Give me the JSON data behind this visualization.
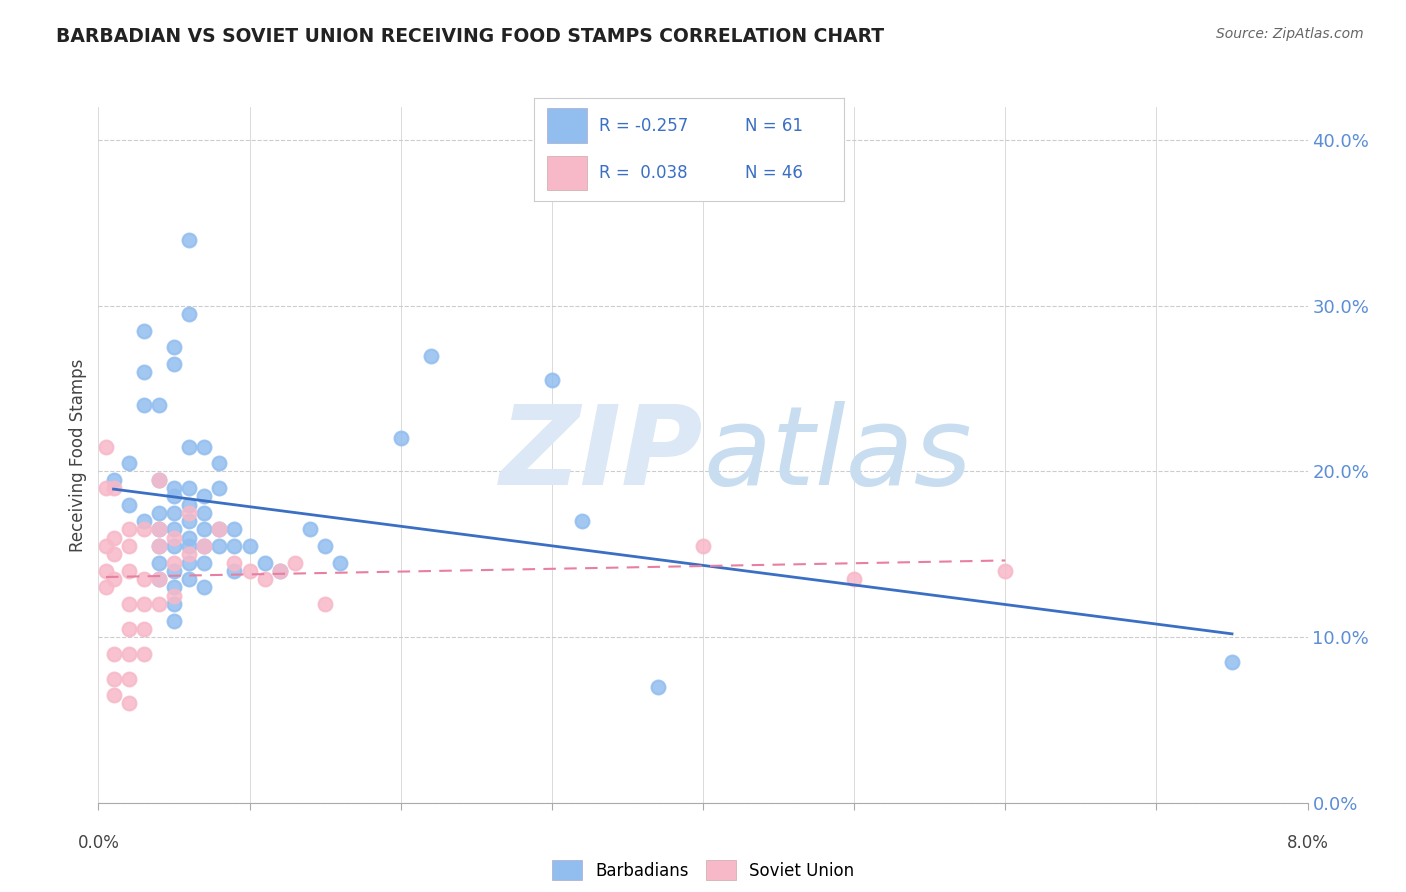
{
  "title": "BARBADIAN VS SOVIET UNION RECEIVING FOOD STAMPS CORRELATION CHART",
  "source": "Source: ZipAtlas.com",
  "ylabel": "Receiving Food Stamps",
  "ytick_vals": [
    0.0,
    0.1,
    0.2,
    0.3,
    0.4
  ],
  "ytick_labels": [
    "0.0%",
    "10.0%",
    "20.0%",
    "30.0%",
    "40.0%"
  ],
  "legend_barbadians": {
    "R": "-0.257",
    "N": "61"
  },
  "legend_soviet": {
    "R": "0.038",
    "N": "46"
  },
  "barbadian_color": "#92bdef",
  "soviet_color": "#f7b8c8",
  "barbadian_line_color": "#3a6fc4",
  "soviet_line_color": "#e87fa0",
  "soviet_line_dash": true,
  "background_color": "#ffffff",
  "grid_color": "#cccccc",
  "ytick_color": "#5b8ed6",
  "xlim": [
    0.0,
    0.08
  ],
  "ylim": [
    0.0,
    0.42
  ],
  "barbadian_points": [
    [
      0.001,
      0.195
    ],
    [
      0.002,
      0.205
    ],
    [
      0.002,
      0.18
    ],
    [
      0.003,
      0.285
    ],
    [
      0.003,
      0.26
    ],
    [
      0.003,
      0.24
    ],
    [
      0.003,
      0.17
    ],
    [
      0.004,
      0.24
    ],
    [
      0.004,
      0.195
    ],
    [
      0.004,
      0.175
    ],
    [
      0.004,
      0.165
    ],
    [
      0.004,
      0.155
    ],
    [
      0.004,
      0.145
    ],
    [
      0.004,
      0.135
    ],
    [
      0.005,
      0.275
    ],
    [
      0.005,
      0.265
    ],
    [
      0.005,
      0.19
    ],
    [
      0.005,
      0.185
    ],
    [
      0.005,
      0.175
    ],
    [
      0.005,
      0.165
    ],
    [
      0.005,
      0.155
    ],
    [
      0.005,
      0.14
    ],
    [
      0.005,
      0.13
    ],
    [
      0.005,
      0.12
    ],
    [
      0.005,
      0.11
    ],
    [
      0.006,
      0.34
    ],
    [
      0.006,
      0.295
    ],
    [
      0.006,
      0.215
    ],
    [
      0.006,
      0.19
    ],
    [
      0.006,
      0.18
    ],
    [
      0.006,
      0.17
    ],
    [
      0.006,
      0.16
    ],
    [
      0.006,
      0.155
    ],
    [
      0.006,
      0.145
    ],
    [
      0.006,
      0.135
    ],
    [
      0.007,
      0.215
    ],
    [
      0.007,
      0.185
    ],
    [
      0.007,
      0.175
    ],
    [
      0.007,
      0.165
    ],
    [
      0.007,
      0.155
    ],
    [
      0.007,
      0.145
    ],
    [
      0.007,
      0.13
    ],
    [
      0.008,
      0.205
    ],
    [
      0.008,
      0.19
    ],
    [
      0.008,
      0.165
    ],
    [
      0.008,
      0.155
    ],
    [
      0.009,
      0.165
    ],
    [
      0.009,
      0.155
    ],
    [
      0.009,
      0.14
    ],
    [
      0.01,
      0.155
    ],
    [
      0.011,
      0.145
    ],
    [
      0.012,
      0.14
    ],
    [
      0.014,
      0.165
    ],
    [
      0.015,
      0.155
    ],
    [
      0.016,
      0.145
    ],
    [
      0.02,
      0.22
    ],
    [
      0.022,
      0.27
    ],
    [
      0.03,
      0.255
    ],
    [
      0.032,
      0.17
    ],
    [
      0.037,
      0.07
    ],
    [
      0.075,
      0.085
    ]
  ],
  "soviet_points": [
    [
      0.0005,
      0.215
    ],
    [
      0.0005,
      0.19
    ],
    [
      0.0005,
      0.155
    ],
    [
      0.0005,
      0.14
    ],
    [
      0.0005,
      0.13
    ],
    [
      0.001,
      0.19
    ],
    [
      0.001,
      0.16
    ],
    [
      0.001,
      0.15
    ],
    [
      0.001,
      0.135
    ],
    [
      0.001,
      0.09
    ],
    [
      0.001,
      0.075
    ],
    [
      0.001,
      0.065
    ],
    [
      0.002,
      0.165
    ],
    [
      0.002,
      0.155
    ],
    [
      0.002,
      0.14
    ],
    [
      0.002,
      0.12
    ],
    [
      0.002,
      0.105
    ],
    [
      0.002,
      0.09
    ],
    [
      0.002,
      0.075
    ],
    [
      0.002,
      0.06
    ],
    [
      0.003,
      0.165
    ],
    [
      0.003,
      0.135
    ],
    [
      0.003,
      0.12
    ],
    [
      0.003,
      0.105
    ],
    [
      0.003,
      0.09
    ],
    [
      0.004,
      0.195
    ],
    [
      0.004,
      0.165
    ],
    [
      0.004,
      0.155
    ],
    [
      0.004,
      0.135
    ],
    [
      0.004,
      0.12
    ],
    [
      0.005,
      0.16
    ],
    [
      0.005,
      0.145
    ],
    [
      0.005,
      0.125
    ],
    [
      0.006,
      0.175
    ],
    [
      0.006,
      0.15
    ],
    [
      0.007,
      0.155
    ],
    [
      0.008,
      0.165
    ],
    [
      0.009,
      0.145
    ],
    [
      0.01,
      0.14
    ],
    [
      0.011,
      0.135
    ],
    [
      0.012,
      0.14
    ],
    [
      0.013,
      0.145
    ],
    [
      0.015,
      0.12
    ],
    [
      0.04,
      0.155
    ],
    [
      0.05,
      0.135
    ],
    [
      0.06,
      0.14
    ]
  ]
}
